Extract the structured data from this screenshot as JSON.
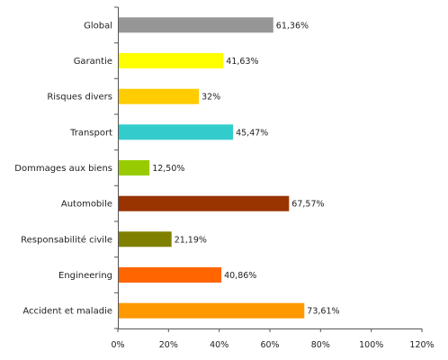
{
  "chart_data": {
    "type": "bar",
    "orientation": "horizontal",
    "categories": [
      "Global",
      "Garantie",
      "Risques divers",
      "Transport",
      "Dommages aux biens",
      "Automobile",
      "Responsabilité civile",
      "Engineering",
      "Accident et maladie"
    ],
    "values": [
      61.36,
      41.63,
      32,
      45.47,
      12.5,
      67.57,
      21.19,
      40.86,
      73.61
    ],
    "value_labels": [
      "61,36%",
      "41,63%",
      "32%",
      "45,47%",
      "12,50%",
      "67,57%",
      "21,19%",
      "40,86%",
      "73,61%"
    ],
    "colors": [
      "#969696",
      "#ffff00",
      "#ffcc00",
      "#33cccc",
      "#99cc00",
      "#993300",
      "#808000",
      "#ff6600",
      "#ff9900"
    ],
    "xlim": [
      0,
      120
    ],
    "xticks": [
      0,
      20,
      40,
      60,
      80,
      100,
      120
    ],
    "xtick_labels": [
      "0%",
      "20%",
      "40%",
      "60%",
      "80%",
      "100%",
      "120%"
    ],
    "grid": false,
    "legend": "none",
    "title": "",
    "xlabel": "",
    "ylabel": ""
  }
}
